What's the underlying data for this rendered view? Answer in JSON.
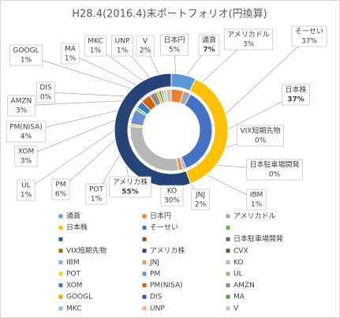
{
  "chart_data": {
    "type": "donut",
    "title": "H28.4(2016.4)末ポートフォリオ(円換算)",
    "rings": [
      {
        "categories": [
          "通貨",
          "日本株",
          "アメリカ株"
        ],
        "values": [
          7,
          37,
          55
        ],
        "value_labels": [
          "7%",
          "37%",
          "55%"
        ],
        "colors": [
          "#5b9bd5",
          "#ffc000",
          "#264478"
        ]
      },
      {
        "categories": [
          "日本円",
          "アメリカドル",
          "そーせい",
          "VIX短期先物",
          "日本駐車場開発",
          "IBM",
          "JNJ",
          "KO",
          "POT",
          "PM",
          "UL",
          "XOM",
          "PM(NISA)",
          "AMZN",
          "DIS",
          "GOOGL",
          "MA",
          "MKC",
          "UNP",
          "V"
        ],
        "values": [
          5,
          3,
          37,
          0,
          0,
          1,
          2,
          30,
          1,
          6,
          1,
          3,
          4,
          3,
          0,
          1,
          1,
          1,
          1,
          2
        ],
        "value_labels": [
          "5%",
          "3%",
          "37%",
          "0%",
          "0%",
          "1%",
          "2%",
          "30%",
          "1%",
          "6%",
          "1%",
          "3%",
          "4%",
          "3%",
          "0%",
          "1%",
          "1%",
          "1%",
          "1%",
          "2%"
        ],
        "colors": [
          "#ed7d31",
          "#a5a5a5",
          "#4472c4",
          "#997300",
          "#636363",
          "#7cafdd",
          "#f1975a",
          "#b7b7b7",
          "#ffcd33",
          "#698ed0",
          "#8cc168",
          "#327dc2",
          "#d26012",
          "#8c8c8c",
          "#335aa1",
          "#e6ac00",
          "#5e9e3b",
          "#95b9e1",
          "#f3ad7e",
          "#c4c4c4"
        ]
      }
    ],
    "legend": [
      {
        "name": "通貨",
        "color": "#5b9bd5"
      },
      {
        "name": "日本円",
        "color": "#ed7d31"
      },
      {
        "name": "アメリカドル",
        "color": "#a5a5a5"
      },
      {
        "name": "日本株",
        "color": "#ffc000"
      },
      {
        "name": "そーせい",
        "color": "#4472c4"
      },
      {
        "name": null,
        "color": "#70ad47"
      },
      {
        "name": null,
        "color": "#255e91"
      },
      {
        "name": null,
        "color": "#9e480e"
      },
      {
        "name": "日本駐車場開発",
        "color": "#636363"
      },
      {
        "name": "VIX短期先物",
        "color": "#997300"
      },
      {
        "name": "アメリカ株",
        "color": "#264478"
      },
      {
        "name": "CVX",
        "color": "#43682b"
      },
      {
        "name": "IBM",
        "color": "#7cafdd"
      },
      {
        "name": "JNJ",
        "color": "#f1975a"
      },
      {
        "name": "KO",
        "color": "#b7b7b7"
      },
      {
        "name": "POT",
        "color": "#ffcd33"
      },
      {
        "name": "PM",
        "color": "#698ed0"
      },
      {
        "name": "UL",
        "color": "#8cc168"
      },
      {
        "name": "XOM",
        "color": "#327dc2"
      },
      {
        "name": "PM(NISA)",
        "color": "#d26012"
      },
      {
        "name": "AMZN",
        "color": "#8c8c8c"
      },
      {
        "name": "GOOGL",
        "color": "#e6ac00"
      },
      {
        "name": "DIS",
        "color": "#335aa1"
      },
      {
        "name": "MA",
        "color": "#5e9e3b"
      },
      {
        "name": "MKC",
        "color": "#95b9e1"
      },
      {
        "name": "UNP",
        "color": "#f3ad7e"
      },
      {
        "name": "V",
        "color": "#c4c4c4"
      }
    ]
  }
}
